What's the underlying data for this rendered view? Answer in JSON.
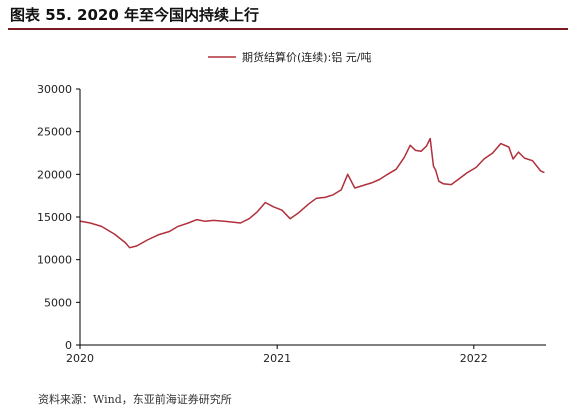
{
  "figure": {
    "title": "图表 55. 2020 年至今国内持续上行",
    "source": "资料来源：Wind，东亚前海证券研究所"
  },
  "colors": {
    "line": "#b0303c",
    "rule": "#7a1a22"
  },
  "chart_data": {
    "type": "line",
    "title": "",
    "xlabel": "",
    "ylabel": "",
    "legend_position": "top-right",
    "grid": false,
    "ylim": [
      0,
      30000
    ],
    "yticks": [
      "0",
      "5000",
      "10000",
      "15000",
      "20000",
      "25000",
      "30000"
    ],
    "xlim": [
      "2020-01-01",
      "2022-05-15"
    ],
    "xticks": [
      "2020",
      "2021",
      "2022"
    ],
    "series": [
      {
        "name": "期货结算价(连续):铝 元/吨",
        "x": [
          "2020-01-02",
          "2020-01-20",
          "2020-02-10",
          "2020-03-05",
          "2020-03-25",
          "2020-04-02",
          "2020-04-15",
          "2020-05-05",
          "2020-05-25",
          "2020-06-15",
          "2020-07-01",
          "2020-07-20",
          "2020-08-05",
          "2020-08-20",
          "2020-09-05",
          "2020-09-25",
          "2020-10-10",
          "2020-10-25",
          "2020-11-10",
          "2020-11-25",
          "2020-12-10",
          "2020-12-25",
          "2021-01-10",
          "2021-01-25",
          "2021-02-10",
          "2021-02-28",
          "2021-03-15",
          "2021-03-31",
          "2021-04-15",
          "2021-04-30",
          "2021-05-12",
          "2021-05-25",
          "2021-06-10",
          "2021-06-25",
          "2021-07-10",
          "2021-07-25",
          "2021-08-10",
          "2021-08-25",
          "2021-09-05",
          "2021-09-15",
          "2021-09-25",
          "2021-10-05",
          "2021-10-12",
          "2021-10-18",
          "2021-10-22",
          "2021-10-28",
          "2021-11-05",
          "2021-11-20",
          "2021-12-05",
          "2021-12-20",
          "2022-01-05",
          "2022-01-20",
          "2022-02-05",
          "2022-02-20",
          "2022-03-07",
          "2022-03-15",
          "2022-03-25",
          "2022-04-05",
          "2022-04-20",
          "2022-05-05",
          "2022-05-12"
        ],
        "y": [
          14500,
          14300,
          13900,
          13000,
          12000,
          11400,
          11600,
          12300,
          12900,
          13300,
          13900,
          14300,
          14700,
          14500,
          14600,
          14500,
          14400,
          14300,
          14800,
          15600,
          16700,
          16200,
          15800,
          14800,
          15500,
          16500,
          17200,
          17300,
          17600,
          18200,
          20000,
          18400,
          18700,
          19000,
          19400,
          20000,
          20600,
          22000,
          23400,
          22800,
          22700,
          23300,
          24200,
          21000,
          20500,
          19200,
          18900,
          18800,
          19500,
          20200,
          20800,
          21800,
          22500,
          23600,
          23200,
          21800,
          22600,
          21900,
          21600,
          20400,
          20200
        ]
      }
    ]
  }
}
